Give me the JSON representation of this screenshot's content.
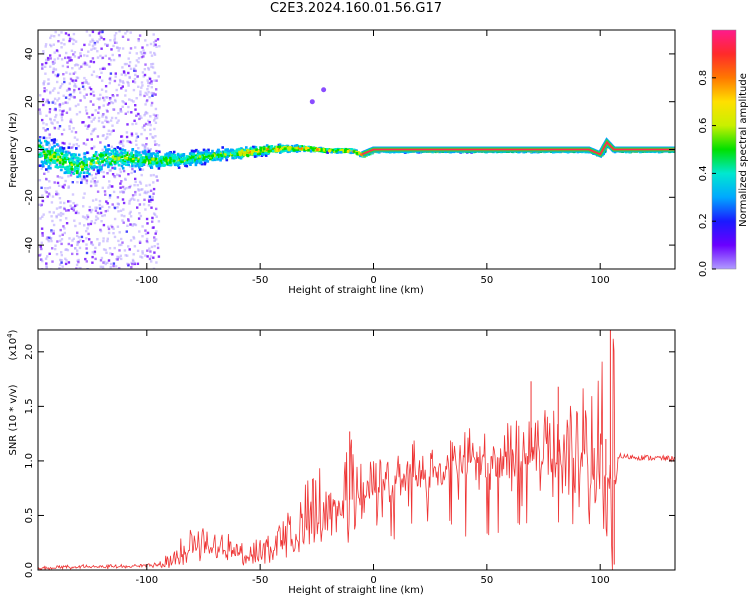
{
  "title": "C2E3.2024.160.01.56.G17",
  "colors": {
    "snr_line": "#ee3333",
    "background": "#ffffff",
    "axis": "#000000",
    "colormap": [
      "#ffffff",
      "#b09cff",
      "#6a00ff",
      "#1a1aff",
      "#00a8ff",
      "#00e8d0",
      "#00e000",
      "#c8f000",
      "#ffe000",
      "#ff7800",
      "#ff2a2a",
      "#ff1a8c"
    ]
  },
  "chart_data": [
    {
      "type": "heatmap",
      "name": "spectrogram",
      "title": "",
      "xlabel": "Height of straight line (km)",
      "ylabel": "Frequency (Hz)",
      "xlim": [
        -148,
        133
      ],
      "ylim": [
        -50,
        50
      ],
      "x_ticks": [
        -100,
        -50,
        0,
        50,
        100
      ],
      "x_tick_labels": [
        "-100",
        "-50",
        "0",
        "50",
        "100"
      ],
      "y_ticks": [
        -40,
        -20,
        0,
        20,
        40
      ],
      "y_tick_labels": [
        "-40",
        "-20",
        "0",
        "20",
        "40"
      ],
      "colorbar": {
        "label": "Normalized spectral amplitude",
        "range": [
          0.0,
          1.0
        ],
        "ticks": [
          0.0,
          0.2,
          0.4,
          0.6,
          0.8
        ],
        "tick_labels": [
          "0.0",
          "0.2",
          "0.4",
          "0.6",
          "0.8"
        ]
      },
      "ridge": {
        "x": [
          -148,
          -140,
          -130,
          -120,
          -110,
          -100,
          -90,
          -80,
          -70,
          -60,
          -50,
          -40,
          -30,
          -20,
          -10,
          -5,
          0,
          20,
          40,
          60,
          80,
          95,
          100,
          103,
          106,
          133
        ],
        "y": [
          0,
          -3,
          -7,
          -3,
          -3,
          -4,
          -4,
          -3,
          -2,
          -1,
          0,
          1,
          1,
          0,
          0,
          -2,
          0,
          0,
          0,
          0,
          0,
          0,
          -2,
          3,
          0,
          0
        ],
        "spread_hz": [
          9,
          9,
          8,
          7,
          6,
          5,
          4.5,
          4,
          3.5,
          3,
          2.5,
          2,
          1.5,
          1,
          1,
          1,
          0.8,
          0.8,
          0.8,
          0.8,
          0.8,
          0.8,
          1.2,
          2,
          0.8,
          0.8
        ]
      },
      "scatter_extent_x": [
        -148,
        -95
      ],
      "blips": [
        {
          "x": -27,
          "y": 20
        },
        {
          "x": -22,
          "y": 25
        }
      ]
    },
    {
      "type": "line",
      "name": "snr",
      "title": "",
      "xlabel": "Height of straight line (km)",
      "ylabel": "SNR (10 * v/v)",
      "y_multiplier_label": "(x10",
      "y_multiplier_exp": "4",
      "y_multiplier_close": ")",
      "xlim": [
        -148,
        133
      ],
      "ylim": [
        0.0,
        2.2
      ],
      "x_ticks": [
        -100,
        -50,
        0,
        50,
        100
      ],
      "x_tick_labels": [
        "-100",
        "-50",
        "0",
        "50",
        "100"
      ],
      "y_ticks": [
        0.0,
        0.5,
        1.0,
        1.5,
        2.0
      ],
      "y_tick_labels": [
        "0.0",
        "0.5",
        "1.0",
        "1.5",
        "2.0"
      ],
      "envelope_x": [
        -148,
        -130,
        -110,
        -100,
        -90,
        -85,
        -80,
        -75,
        -70,
        -60,
        -55,
        -50,
        -45,
        -40,
        -35,
        -30,
        -25,
        -20,
        -15,
        -10,
        -5,
        0,
        10,
        20,
        30,
        40,
        50,
        60,
        70,
        80,
        90,
        95,
        100,
        104,
        106,
        108,
        110,
        120,
        133
      ],
      "envelope_base": [
        0.01,
        0.03,
        0.03,
        0.04,
        0.06,
        0.12,
        0.2,
        0.25,
        0.2,
        0.15,
        0.12,
        0.14,
        0.18,
        0.22,
        0.3,
        0.35,
        0.45,
        0.55,
        0.6,
        0.65,
        0.7,
        0.75,
        0.85,
        0.9,
        0.95,
        1.0,
        1.02,
        1.05,
        1.08,
        1.1,
        1.0,
        0.95,
        0.9,
        0.85,
        0.8,
        1.05,
        1.04,
        1.03,
        1.02
      ],
      "envelope_peak": [
        0.03,
        0.05,
        0.05,
        0.06,
        0.15,
        0.3,
        0.4,
        0.45,
        0.4,
        0.3,
        0.25,
        0.3,
        0.4,
        0.5,
        0.6,
        0.8,
        0.95,
        1.05,
        1.1,
        1.25,
        1.1,
        1.0,
        1.15,
        1.2,
        1.25,
        1.3,
        1.35,
        1.4,
        1.45,
        1.6,
        1.65,
        1.7,
        1.85,
        2.2,
        2.2,
        1.1,
        1.08,
        1.08,
        1.06
      ],
      "features": [
        {
          "x": -10.5,
          "y": 1.27
        },
        {
          "x": 69.5,
          "y": 1.73
        },
        {
          "x": 81.5,
          "y": 1.68
        },
        {
          "x": 104.5,
          "y": 2.2
        },
        {
          "x": 102.5,
          "y": 1.2
        },
        {
          "x": 106.2,
          "y": 0.05
        }
      ]
    }
  ]
}
